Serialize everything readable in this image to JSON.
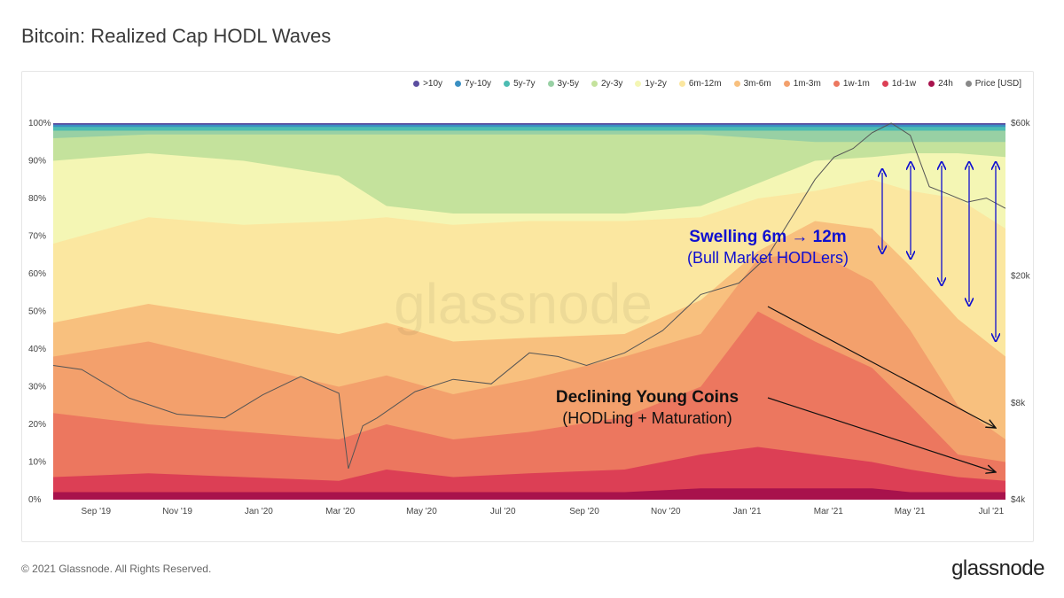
{
  "header": {
    "title": "Bitcoin: Realized Cap HODL Waves"
  },
  "footer": {
    "copyright": "© 2021 Glassnode. All Rights Reserved.",
    "brand": "glassnode"
  },
  "watermark": "glassnode",
  "chart_data": {
    "type": "area",
    "stacked": true,
    "title": "Bitcoin: Realized Cap HODL Waves",
    "x_ticks": [
      "Sep '19",
      "Nov '19",
      "Jan '20",
      "Mar '20",
      "May '20",
      "Jul '20",
      "Sep '20",
      "Nov '20",
      "Jan '21",
      "Mar '21",
      "May '21",
      "Jul '21"
    ],
    "y_left": {
      "ticks": [
        "0%",
        "10%",
        "20%",
        "30%",
        "40%",
        "50%",
        "60%",
        "70%",
        "80%",
        "90%",
        "100%"
      ],
      "range": [
        0,
        100
      ],
      "unit": "%"
    },
    "y_right": {
      "ticks": [
        "$4k",
        "$8k",
        "$20k",
        "$60k"
      ],
      "scale": "log",
      "range": [
        4000,
        60000
      ]
    },
    "legend_position": "top-right",
    "grid": false,
    "legend": [
      {
        "name": ">10y",
        "color": "#5b4ea0"
      },
      {
        "name": "7y-10y",
        "color": "#3a8fc2"
      },
      {
        "name": "5y-7y",
        "color": "#4cbcb2"
      },
      {
        "name": "3y-5y",
        "color": "#98d0a4"
      },
      {
        "name": "2y-3y",
        "color": "#c4e29c"
      },
      {
        "name": "1y-2y",
        "color": "#f4f6b4"
      },
      {
        "name": "6m-12m",
        "color": "#fbe7a0"
      },
      {
        "name": "3m-6m",
        "color": "#f8c07e"
      },
      {
        "name": "1m-3m",
        "color": "#f3a06c"
      },
      {
        "name": "1w-1m",
        "color": "#ec775f"
      },
      {
        "name": "1d-1w",
        "color": "#dc3f55"
      },
      {
        "name": "24h",
        "color": "#a8124c"
      },
      {
        "name": "Price [USD]",
        "color": "#888888"
      }
    ],
    "x_index": [
      0,
      0.1,
      0.2,
      0.3,
      0.35,
      0.42,
      0.5,
      0.6,
      0.68,
      0.74,
      0.8,
      0.86,
      0.9,
      0.95,
      1.0
    ],
    "cumulative_boundaries": [
      {
        "name": "24h",
        "values": [
          2,
          2,
          2,
          2,
          2,
          2,
          2,
          2,
          3,
          3,
          3,
          3,
          2,
          2,
          2
        ]
      },
      {
        "name": "1d-1w",
        "values": [
          6,
          7,
          6,
          5,
          8,
          6,
          7,
          8,
          12,
          14,
          12,
          10,
          8,
          6,
          5
        ]
      },
      {
        "name": "1w-1m",
        "values": [
          23,
          20,
          18,
          16,
          20,
          16,
          18,
          22,
          30,
          50,
          42,
          35,
          25,
          12,
          10
        ]
      },
      {
        "name": "1m-3m",
        "values": [
          38,
          42,
          36,
          30,
          33,
          28,
          32,
          38,
          44,
          64,
          66,
          58,
          45,
          25,
          16
        ]
      },
      {
        "name": "3m-6m",
        "values": [
          47,
          52,
          48,
          44,
          47,
          42,
          43,
          44,
          53,
          66,
          74,
          72,
          62,
          48,
          38
        ]
      },
      {
        "name": "6m-12m",
        "values": [
          68,
          75,
          73,
          74,
          75,
          73,
          74,
          74,
          75,
          80,
          82,
          85,
          82,
          80,
          72
        ]
      },
      {
        "name": "1y-2y",
        "values": [
          90,
          92,
          90,
          86,
          78,
          76,
          76,
          76,
          78,
          84,
          90,
          91,
          92,
          92,
          91
        ]
      },
      {
        "name": "2y-3y",
        "values": [
          96,
          97,
          97,
          97,
          97,
          97,
          97,
          97,
          97,
          96,
          95,
          95,
          95,
          95,
          95
        ]
      },
      {
        "name": "3y-5y",
        "values": [
          98,
          98,
          98,
          98,
          98,
          98,
          98,
          98,
          98,
          98,
          98,
          98,
          98,
          98,
          98
        ]
      },
      {
        "name": "5y-7y",
        "values": [
          99,
          99,
          99,
          99,
          99,
          99,
          99,
          99,
          99,
          99,
          99,
          99,
          99,
          99,
          99
        ]
      },
      {
        "name": "7y-10y",
        "values": [
          99.6,
          99.6,
          99.6,
          99.6,
          99.6,
          99.6,
          99.6,
          99.6,
          99.6,
          99.6,
          99.6,
          99.6,
          99.6,
          99.6,
          99.6
        ]
      },
      {
        "name": ">10y",
        "values": [
          100,
          100,
          100,
          100,
          100,
          100,
          100,
          100,
          100,
          100,
          100,
          100,
          100,
          100,
          100
        ]
      }
    ],
    "price_series": {
      "name": "Price [USD]",
      "x": [
        0,
        0.03,
        0.08,
        0.13,
        0.18,
        0.22,
        0.26,
        0.3,
        0.31,
        0.325,
        0.34,
        0.38,
        0.42,
        0.46,
        0.5,
        0.53,
        0.56,
        0.6,
        0.64,
        0.68,
        0.72,
        0.75,
        0.78,
        0.8,
        0.82,
        0.84,
        0.86,
        0.88,
        0.9,
        0.92,
        0.94,
        0.96,
        0.98,
        1.0
      ],
      "y": [
        10500,
        10200,
        8300,
        7400,
        7200,
        8500,
        9700,
        8600,
        5000,
        6800,
        7200,
        8700,
        9500,
        9200,
        11500,
        11200,
        10500,
        11500,
        13500,
        17500,
        19000,
        23000,
        32000,
        40000,
        47000,
        50000,
        56000,
        60000,
        55000,
        38000,
        36000,
        34000,
        35000,
        32500
      ]
    },
    "annotations": [
      {
        "title": "Swelling 6m → 12m",
        "subtitle": "(Bull Market HODLers)",
        "color": "#1010d0"
      },
      {
        "title": "Declining Young Coins",
        "subtitle": "(HODLing + Maturation)",
        "color": "#111111"
      }
    ]
  }
}
